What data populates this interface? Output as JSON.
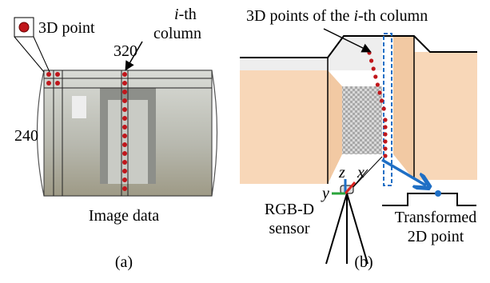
{
  "panel_a": {
    "legend": "3D point",
    "column_label": {
      "italic": "i",
      "rest": "-th",
      "line2": "column"
    },
    "width_label": "320",
    "height_label": "240",
    "caption": "Image data",
    "tag": "(a)"
  },
  "panel_b": {
    "column_points_label": {
      "before": "3D points of the ",
      "italic": "i",
      "after": "-th column"
    },
    "axes": {
      "z": "z",
      "x": "x",
      "y": "y"
    },
    "sensor_label": [
      "RGB-D",
      "sensor"
    ],
    "output_label": [
      "Transformed",
      "2D point"
    ],
    "tag": "(b)"
  }
}
